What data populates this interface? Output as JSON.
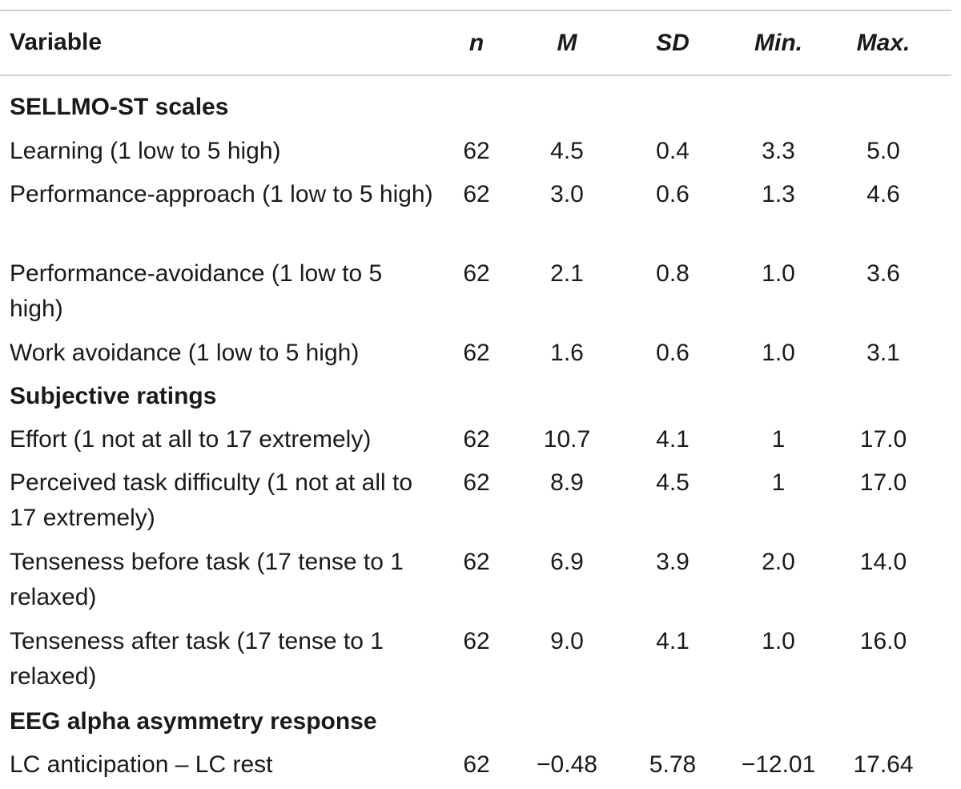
{
  "header": {
    "variable": "Variable",
    "n": "n",
    "m": "M",
    "sd": "SD",
    "min": "Min.",
    "max": "Max."
  },
  "sections": [
    {
      "title": "SELLMO-ST scales",
      "rows": [
        {
          "label": "Learning (1 low to 5 high)",
          "n": "62",
          "m": "4.5",
          "sd": "0.4",
          "min": "3.3",
          "max": "5.0"
        },
        {
          "label": "Performance-approach (1 low to 5 high)",
          "n": "62",
          "m": "3.0",
          "sd": "0.6",
          "min": "1.3",
          "max": "4.6"
        },
        {
          "label": "Performance-avoidance (1 low to 5 high)",
          "n": "62",
          "m": "2.1",
          "sd": "0.8",
          "min": "1.0",
          "max": "3.6"
        },
        {
          "label": "Work avoidance (1 low to 5 high)",
          "n": "62",
          "m": "1.6",
          "sd": "0.6",
          "min": "1.0",
          "max": "3.1"
        }
      ]
    },
    {
      "title": "Subjective ratings",
      "rows": [
        {
          "label": "Effort (1 not at all to 17 extremely)",
          "n": "62",
          "m": "10.7",
          "sd": "4.1",
          "min": "1",
          "max": "17.0"
        },
        {
          "label": "Perceived task difficulty (1 not at all to 17 extremely)",
          "n": "62",
          "m": "8.9",
          "sd": "4.5",
          "min": "1",
          "max": "17.0"
        },
        {
          "label": "Tenseness before task (17 tense to 1 relaxed)",
          "n": "62",
          "m": "6.9",
          "sd": "3.9",
          "min": "2.0",
          "max": "14.0"
        },
        {
          "label": "Tenseness after task (17 tense to 1 relaxed)",
          "n": "62",
          "m": "9.0",
          "sd": "4.1",
          "min": "1.0",
          "max": "16.0"
        }
      ]
    },
    {
      "title": "EEG alpha asymmetry response",
      "rows": [
        {
          "label": "LC anticipation – LC rest",
          "n": "62",
          "m": "−0.48",
          "sd": "5.78",
          "min": "−12.01",
          "max": "17.64"
        }
      ]
    }
  ]
}
